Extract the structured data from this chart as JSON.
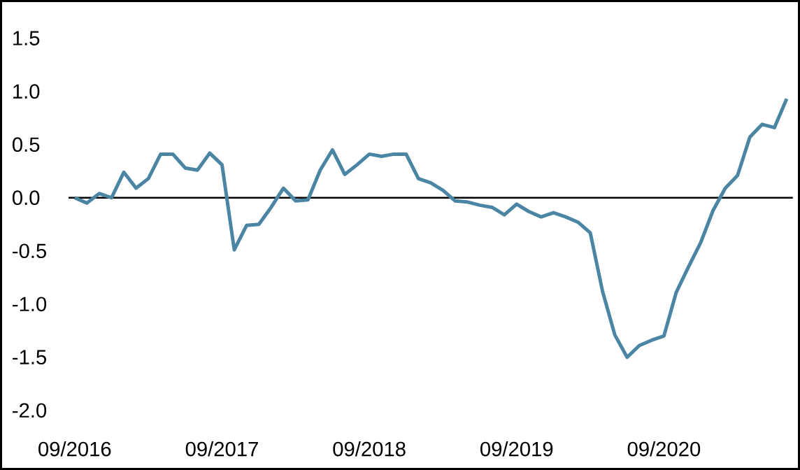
{
  "chart_data": {
    "type": "line",
    "x": [
      "2016-09",
      "2016-10",
      "2016-11",
      "2016-12",
      "2017-01",
      "2017-02",
      "2017-03",
      "2017-04",
      "2017-05",
      "2017-06",
      "2017-07",
      "2017-08",
      "2017-09",
      "2017-10",
      "2017-11",
      "2017-12",
      "2018-01",
      "2018-02",
      "2018-03",
      "2018-04",
      "2018-05",
      "2018-06",
      "2018-07",
      "2018-08",
      "2018-09",
      "2018-10",
      "2018-11",
      "2018-12",
      "2019-01",
      "2019-02",
      "2019-03",
      "2019-04",
      "2019-05",
      "2019-06",
      "2019-07",
      "2019-08",
      "2019-09",
      "2019-10",
      "2019-11",
      "2019-12",
      "2020-01",
      "2020-02",
      "2020-03",
      "2020-04",
      "2020-05",
      "2020-06",
      "2020-07",
      "2020-08",
      "2020-09",
      "2020-10",
      "2020-11",
      "2020-12",
      "2021-01",
      "2021-02",
      "2021-03",
      "2021-04",
      "2021-05",
      "2021-06",
      "2021-07"
    ],
    "series": [
      {
        "color": "#4a86a4",
        "values": [
          0.0,
          -0.05,
          0.04,
          0.0,
          0.24,
          0.09,
          0.18,
          0.41,
          0.41,
          0.28,
          0.26,
          0.42,
          0.31,
          -0.49,
          -0.26,
          -0.25,
          -0.09,
          0.09,
          -0.03,
          -0.02,
          0.26,
          0.45,
          0.22,
          0.31,
          0.41,
          0.39,
          0.41,
          0.41,
          0.18,
          0.14,
          0.07,
          -0.03,
          -0.04,
          -0.07,
          -0.09,
          -0.16,
          -0.06,
          -0.13,
          -0.18,
          -0.14,
          -0.18,
          -0.23,
          -0.33,
          -0.88,
          -1.29,
          -1.5,
          -1.39,
          -1.34,
          -1.3,
          -0.89,
          -0.65,
          -0.42,
          -0.12,
          0.09,
          0.21,
          0.57,
          0.69,
          0.66,
          0.93
        ]
      }
    ],
    "xlim": [
      "2016-03",
      "2021-08"
    ],
    "xticks": [
      {
        "value": "2016-09",
        "label": "09/2016"
      },
      {
        "value": "2017-09",
        "label": "09/2017"
      },
      {
        "value": "2018-09",
        "label": "09/2018"
      },
      {
        "value": "2019-09",
        "label": "09/2019"
      },
      {
        "value": "2020-09",
        "label": "09/2020"
      }
    ],
    "ylim": [
      -2.55,
      1.85
    ],
    "yticks": [
      {
        "value": -2.0,
        "label": "-2.0"
      },
      {
        "value": -1.5,
        "label": "-1.5"
      },
      {
        "value": -1.0,
        "label": "-1.0"
      },
      {
        "value": -0.5,
        "label": "-0.5"
      },
      {
        "value": 0.0,
        "label": "0.0"
      },
      {
        "value": 0.5,
        "label": "0.5"
      },
      {
        "value": 1.0,
        "label": "1.0"
      },
      {
        "value": 1.5,
        "label": "1.5"
      }
    ],
    "ref_lines": [
      {
        "axis": "y",
        "value": 0,
        "color": "#000000"
      }
    ],
    "grid": false,
    "marker": "none",
    "line_style": "solid"
  }
}
